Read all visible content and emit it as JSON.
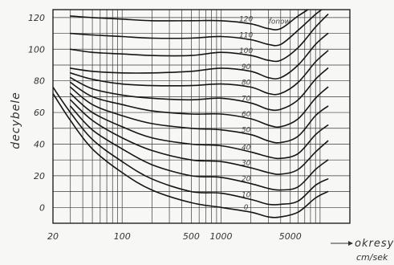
{
  "chart_data": {
    "type": "line",
    "title": "",
    "xlabel": "okresy",
    "xlabel_unit": "cm/sek",
    "ylabel": "decybele",
    "x_scale": "log",
    "xlim": [
      20,
      20000
    ],
    "ylim": [
      -10,
      125
    ],
    "x_ticks": [
      {
        "value": 20,
        "label": "20"
      },
      {
        "value": 100,
        "label": "100"
      },
      {
        "value": 500,
        "label": "500"
      },
      {
        "value": 1000,
        "label": "1000"
      },
      {
        "value": 5000,
        "label": "5000"
      }
    ],
    "y_ticks": [
      0,
      20,
      40,
      60,
      80,
      100,
      120
    ],
    "grid": true,
    "series": [
      {
        "label": "0",
        "points": [
          [
            20,
            72
          ],
          [
            30,
            55
          ],
          [
            50,
            37
          ],
          [
            100,
            22
          ],
          [
            200,
            11
          ],
          [
            500,
            3
          ],
          [
            1000,
            0
          ],
          [
            2000,
            -3
          ],
          [
            3000,
            -6
          ],
          [
            4000,
            -6
          ],
          [
            6000,
            -3
          ],
          [
            9000,
            6
          ],
          [
            12000,
            10
          ]
        ]
      },
      {
        "label": "10",
        "points": [
          [
            20,
            76
          ],
          [
            30,
            60
          ],
          [
            50,
            43
          ],
          [
            100,
            29
          ],
          [
            200,
            18
          ],
          [
            500,
            10
          ],
          [
            1000,
            9
          ],
          [
            2000,
            5
          ],
          [
            3000,
            2
          ],
          [
            4000,
            2
          ],
          [
            6000,
            4
          ],
          [
            9000,
            14
          ],
          [
            12000,
            18
          ]
        ]
      },
      {
        "label": "20",
        "points": [
          [
            30,
            64
          ],
          [
            50,
            49
          ],
          [
            100,
            37
          ],
          [
            200,
            27
          ],
          [
            500,
            20
          ],
          [
            1000,
            19
          ],
          [
            2000,
            15
          ],
          [
            3000,
            12
          ],
          [
            4000,
            11
          ],
          [
            6000,
            13
          ],
          [
            9000,
            24
          ],
          [
            12000,
            30
          ]
        ]
      },
      {
        "label": "30",
        "points": [
          [
            30,
            68
          ],
          [
            50,
            55
          ],
          [
            100,
            44
          ],
          [
            200,
            36
          ],
          [
            500,
            30
          ],
          [
            1000,
            29
          ],
          [
            2000,
            25
          ],
          [
            3000,
            22
          ],
          [
            4000,
            21
          ],
          [
            6000,
            24
          ],
          [
            9000,
            35
          ],
          [
            12000,
            42
          ]
        ]
      },
      {
        "label": "40",
        "points": [
          [
            30,
            72
          ],
          [
            50,
            60
          ],
          [
            100,
            51
          ],
          [
            200,
            44
          ],
          [
            500,
            40
          ],
          [
            1000,
            39
          ],
          [
            2000,
            35
          ],
          [
            3000,
            32
          ],
          [
            4000,
            31
          ],
          [
            6000,
            34
          ],
          [
            9000,
            46
          ],
          [
            12000,
            52
          ]
        ]
      },
      {
        "label": "50",
        "points": [
          [
            30,
            76
          ],
          [
            50,
            65
          ],
          [
            100,
            58
          ],
          [
            200,
            53
          ],
          [
            500,
            50
          ],
          [
            1000,
            49
          ],
          [
            2000,
            46
          ],
          [
            3000,
            42
          ],
          [
            4000,
            41
          ],
          [
            6000,
            45
          ],
          [
            9000,
            58
          ],
          [
            12000,
            64
          ]
        ]
      },
      {
        "label": "60",
        "points": [
          [
            30,
            79
          ],
          [
            50,
            70
          ],
          [
            100,
            65
          ],
          [
            200,
            61
          ],
          [
            500,
            59
          ],
          [
            1000,
            59
          ],
          [
            2000,
            56
          ],
          [
            3000,
            52
          ],
          [
            4000,
            51
          ],
          [
            6000,
            56
          ],
          [
            9000,
            69
          ],
          [
            12000,
            76
          ]
        ]
      },
      {
        "label": "70",
        "points": [
          [
            30,
            82
          ],
          [
            50,
            75
          ],
          [
            100,
            71
          ],
          [
            200,
            69
          ],
          [
            500,
            68
          ],
          [
            1000,
            69
          ],
          [
            2000,
            66
          ],
          [
            3000,
            62
          ],
          [
            4000,
            62
          ],
          [
            6000,
            68
          ],
          [
            9000,
            81
          ],
          [
            12000,
            88
          ]
        ]
      },
      {
        "label": "80",
        "points": [
          [
            30,
            85
          ],
          [
            50,
            81
          ],
          [
            100,
            78
          ],
          [
            200,
            77
          ],
          [
            500,
            77
          ],
          [
            1000,
            78
          ],
          [
            2000,
            76
          ],
          [
            3000,
            72
          ],
          [
            4000,
            72
          ],
          [
            6000,
            79
          ],
          [
            9000,
            92
          ],
          [
            12000,
            99
          ]
        ]
      },
      {
        "label": "90",
        "points": [
          [
            30,
            88
          ],
          [
            50,
            86
          ],
          [
            100,
            85
          ],
          [
            200,
            85
          ],
          [
            500,
            86
          ],
          [
            1000,
            88
          ],
          [
            2000,
            86
          ],
          [
            3000,
            82
          ],
          [
            4000,
            82
          ],
          [
            6000,
            90
          ],
          [
            9000,
            103
          ],
          [
            12000,
            110
          ]
        ]
      },
      {
        "label": "100",
        "points": [
          [
            30,
            100
          ],
          [
            50,
            98
          ],
          [
            100,
            97
          ],
          [
            200,
            96
          ],
          [
            500,
            96
          ],
          [
            1000,
            98
          ],
          [
            2000,
            96
          ],
          [
            3000,
            93
          ],
          [
            4000,
            93
          ],
          [
            6000,
            101
          ],
          [
            9000,
            114
          ],
          [
            12000,
            122
          ]
        ]
      },
      {
        "label": "110",
        "points": [
          [
            30,
            110
          ],
          [
            50,
            109
          ],
          [
            100,
            108
          ],
          [
            200,
            107
          ],
          [
            500,
            107
          ],
          [
            1000,
            108
          ],
          [
            2000,
            106
          ],
          [
            3000,
            103
          ],
          [
            4000,
            103
          ],
          [
            6000,
            112
          ],
          [
            9000,
            122
          ],
          [
            12000,
            128
          ]
        ]
      },
      {
        "label": "120",
        "points": [
          [
            30,
            121
          ],
          [
            50,
            120
          ],
          [
            100,
            119
          ],
          [
            200,
            118
          ],
          [
            500,
            118
          ],
          [
            1000,
            118
          ],
          [
            2000,
            116
          ],
          [
            3000,
            113
          ],
          [
            4000,
            113
          ],
          [
            6000,
            121
          ],
          [
            9000,
            128
          ]
        ]
      }
    ],
    "curve_label_suffix": "fonow"
  }
}
